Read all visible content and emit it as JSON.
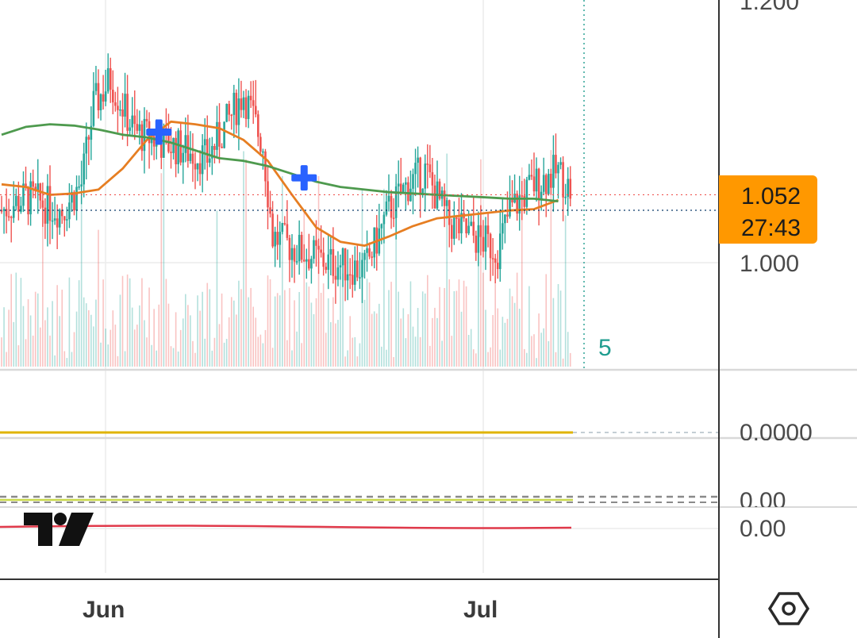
{
  "chart_data": {
    "type": "candlestick",
    "symbol_hint": "",
    "y_axis": {
      "range": [
        0.97,
        1.21
      ],
      "ticks": [
        "1.200",
        "1.000"
      ]
    },
    "x_axis": {
      "ticks": [
        "Jun",
        "Jul"
      ]
    },
    "last_price": "1.052",
    "countdown": "27:43",
    "volume_value": "5",
    "oscillators": [
      {
        "value_label": "0.0000",
        "line_color": "#e0b400"
      },
      {
        "value_label": "0.00",
        "line_color": "#c8d84a"
      },
      {
        "value_label": "0.00",
        "line_color": "#e0394a"
      }
    ],
    "moving_averages": [
      {
        "color": "#e67e22",
        "points": [
          [
            0,
            1.06
          ],
          [
            10,
            1.058
          ],
          [
            20,
            1.052
          ],
          [
            30,
            1.053
          ],
          [
            40,
            1.056
          ],
          [
            50,
            1.072
          ],
          [
            60,
            1.094
          ],
          [
            70,
            1.108
          ],
          [
            80,
            1.106
          ],
          [
            90,
            1.103
          ],
          [
            100,
            1.094
          ],
          [
            110,
            1.078
          ],
          [
            120,
            1.052
          ],
          [
            130,
            1.027
          ],
          [
            140,
            1.016
          ],
          [
            150,
            1.013
          ],
          [
            160,
            1.02
          ],
          [
            170,
            1.028
          ],
          [
            180,
            1.034
          ],
          [
            190,
            1.036
          ],
          [
            200,
            1.038
          ],
          [
            210,
            1.04
          ],
          [
            220,
            1.041
          ],
          [
            230,
            1.048
          ]
        ]
      },
      {
        "color": "#4e9a4e",
        "points": [
          [
            0,
            1.098
          ],
          [
            10,
            1.104
          ],
          [
            20,
            1.106
          ],
          [
            30,
            1.105
          ],
          [
            40,
            1.102
          ],
          [
            50,
            1.098
          ],
          [
            60,
            1.096
          ],
          [
            70,
            1.092
          ],
          [
            80,
            1.086
          ],
          [
            90,
            1.08
          ],
          [
            100,
            1.078
          ],
          [
            110,
            1.074
          ],
          [
            120,
            1.068
          ],
          [
            130,
            1.062
          ],
          [
            140,
            1.058
          ],
          [
            150,
            1.056
          ],
          [
            160,
            1.054
          ],
          [
            170,
            1.053
          ],
          [
            180,
            1.052
          ],
          [
            190,
            1.051
          ],
          [
            200,
            1.05
          ],
          [
            210,
            1.049
          ],
          [
            220,
            1.049
          ],
          [
            230,
            1.047
          ]
        ]
      }
    ],
    "markers": [
      {
        "index": 65,
        "price": 1.1,
        "symbol": "plus",
        "color": "#2962ff"
      },
      {
        "index": 125,
        "price": 1.065,
        "symbol": "plus",
        "color": "#2962ff"
      }
    ],
    "up_color": "#26a69a",
    "down_color": "#ef5350"
  }
}
